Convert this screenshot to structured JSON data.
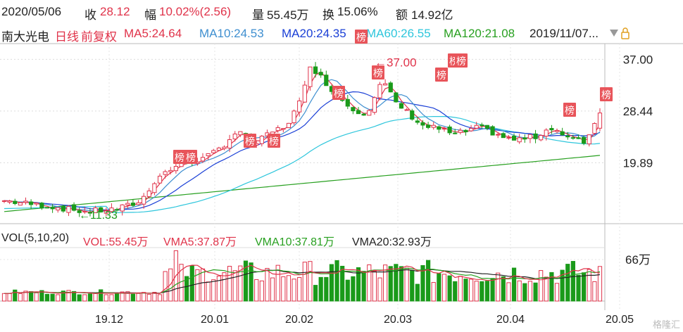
{
  "header": {
    "date": "2020/05/06",
    "close_label": "收",
    "close": "28.12",
    "change_label": "幅",
    "change": "10.02%(2.56)",
    "volume_label": "量",
    "volume": "55.45万",
    "turnover_label": "换",
    "turnover": "15.06%",
    "amount_label": "额",
    "amount": "14.92亿"
  },
  "ma_line": {
    "stock_name": "南大光电",
    "period": "日线",
    "adjust": "前复权",
    "ma5": "MA5:24.64",
    "ma10": "MA10:24.53",
    "ma20": "MA20:24.35",
    "ma60": "MA60:26.55",
    "ma120": "MA120:21.08",
    "date_range": "2019/11/07...",
    "colors": {
      "ma5": "#e0334a",
      "ma10": "#3f8fd0",
      "ma20": "#1a3fd6",
      "ma60": "#2ec6dc",
      "ma120": "#28a020"
    }
  },
  "vol_line": {
    "title": "VOL(5,10,20)",
    "vol": "VOL:55.45万",
    "vma5": "VMA5:37.87万",
    "vma10": "VMA10:37.81万",
    "vma20": "VMA20:32.93万"
  },
  "marker_label": "榜",
  "watermark": "格隆汇",
  "chart_data": [
    {
      "type": "candlestick",
      "y_ticks": [
        "37.00",
        "28.44",
        "19.89"
      ],
      "y_tick_values": [
        37.0,
        28.44,
        19.89
      ],
      "annotations": [
        {
          "text": "37.00",
          "kind": "high"
        },
        {
          "text": "11.33",
          "kind": "low"
        }
      ],
      "x_ticks": [
        "19.12",
        "20.01",
        "20.02",
        "20.03",
        "20.04",
        "20.05"
      ],
      "ylim": [
        9.8,
        39.6
      ],
      "grid": true
    },
    {
      "type": "bar",
      "y_ticks": [
        "66万"
      ],
      "y_tick_values": [
        66
      ],
      "ylim": [
        0,
        85
      ]
    }
  ]
}
